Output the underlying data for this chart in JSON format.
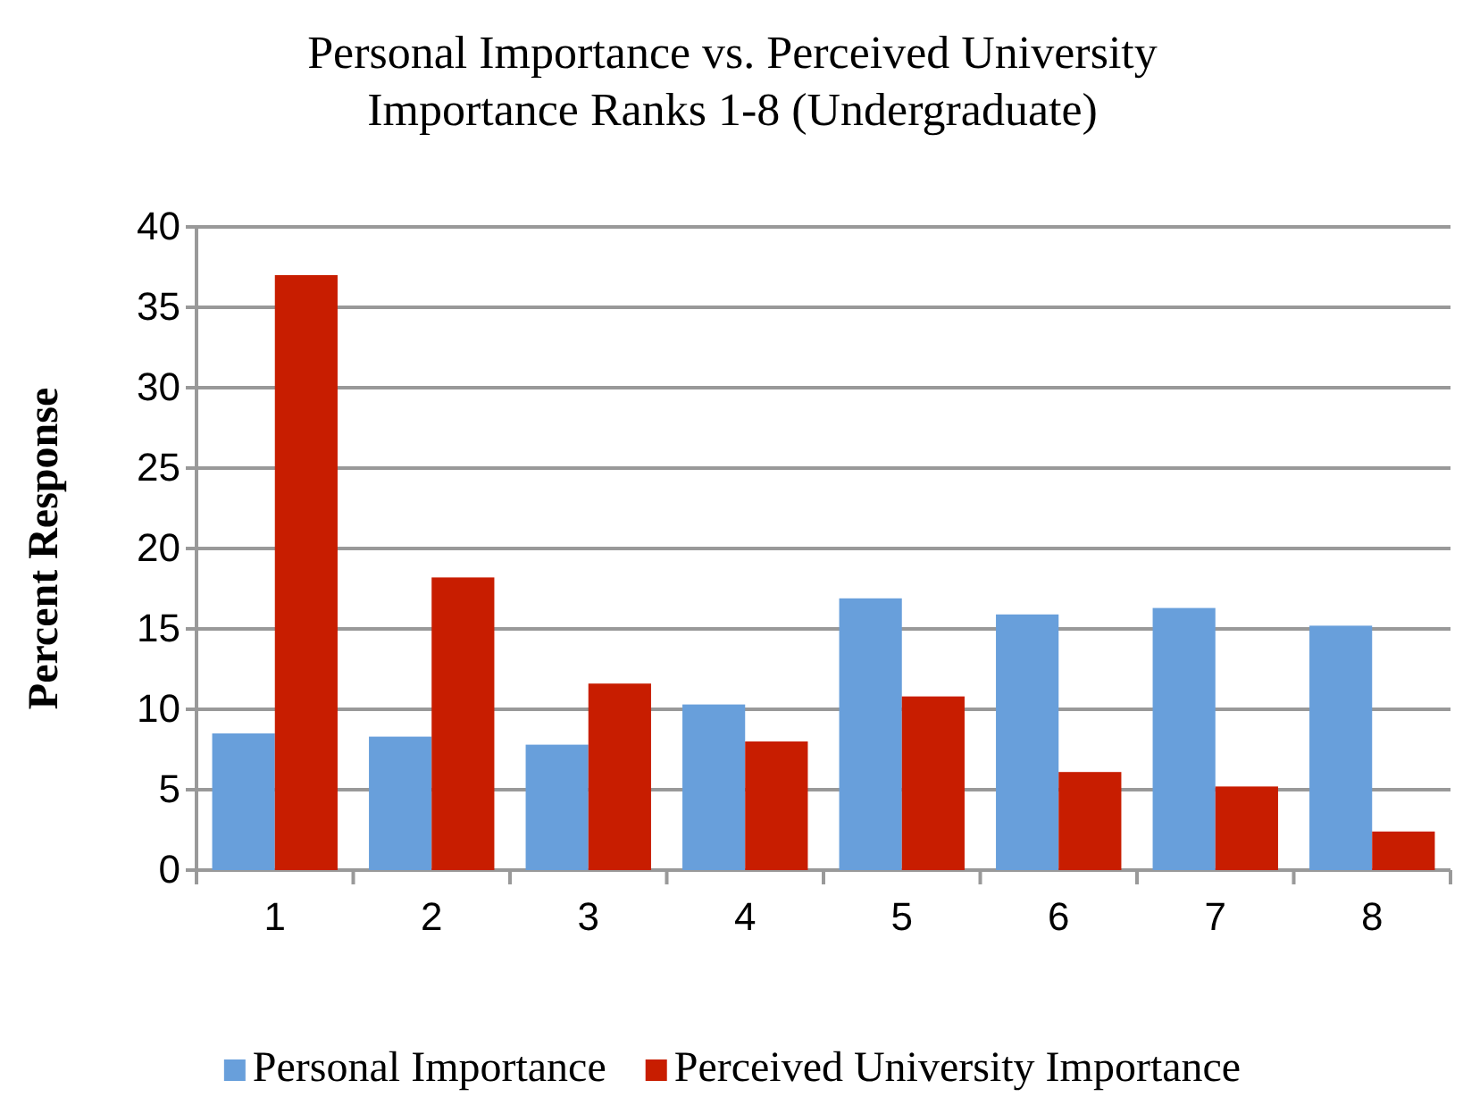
{
  "chart_data": {
    "type": "bar",
    "title": "Personal Importance vs. Perceived University Importance Ranks 1-8 (Undergraduate)",
    "ylabel": "Percent Response",
    "categories": [
      "1",
      "2",
      "3",
      "4",
      "5",
      "6",
      "7",
      "8"
    ],
    "series": [
      {
        "name": "Personal Importance",
        "color": "#689fdb",
        "values": [
          8.5,
          8.3,
          7.8,
          10.3,
          16.9,
          15.9,
          16.3,
          15.2
        ]
      },
      {
        "name": "Perceived University Importance",
        "color": "#c81d00",
        "values": [
          37.0,
          18.2,
          11.6,
          8.0,
          10.8,
          6.1,
          5.2,
          2.4
        ]
      }
    ],
    "ylim": [
      0,
      40
    ],
    "yticks": [
      0,
      5,
      10,
      15,
      20,
      25,
      30,
      35,
      40
    ],
    "grid": "y",
    "legend": "bottom"
  }
}
